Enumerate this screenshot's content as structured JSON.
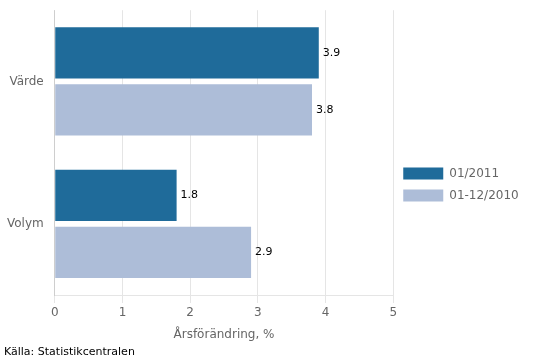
{
  "chart_data": {
    "type": "bar",
    "orientation": "horizontal",
    "categories": [
      "Värde",
      "Volym"
    ],
    "series": [
      {
        "name": "01/2011",
        "color": "#1F6B9A",
        "values": [
          3.9,
          1.8
        ]
      },
      {
        "name": "01-12/2010",
        "color": "#ADBDD8",
        "values": [
          3.8,
          2.9
        ]
      }
    ],
    "xlabel": "Årsförändring, %",
    "xlim": [
      0,
      5
    ],
    "xticks": [
      0,
      1,
      2,
      3,
      4,
      5
    ],
    "grid": true,
    "legend": "right",
    "data_labels": true,
    "annotations": [
      "Källa: Statistikcentralen"
    ]
  }
}
